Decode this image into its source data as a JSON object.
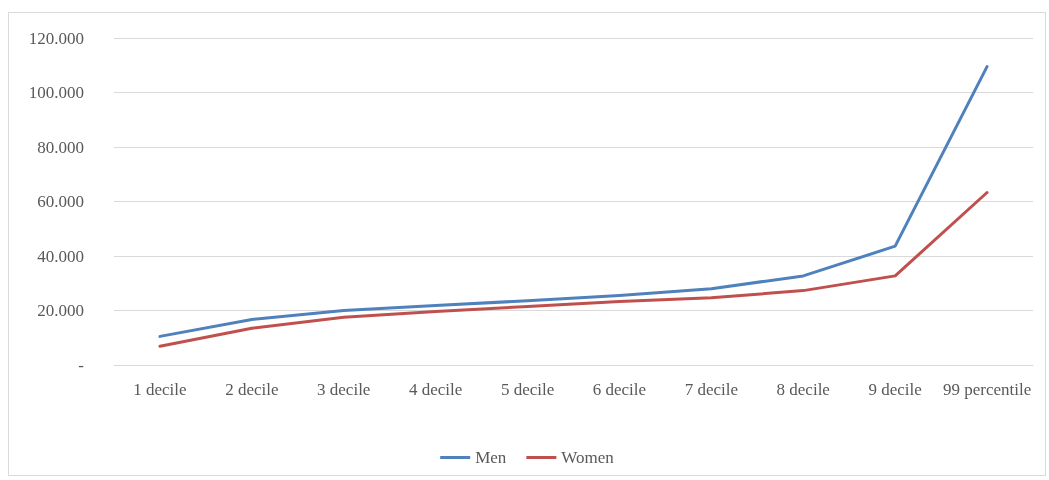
{
  "chart_data": {
    "type": "line",
    "categories": [
      "1 decile",
      "2 decile",
      "3 decile",
      "4 decile",
      "5 decile",
      "6 decile",
      "7 decile",
      "8 decile",
      "9 decile",
      "99 percentile"
    ],
    "series": [
      {
        "name": "Men",
        "color": "#4f81bd",
        "values": [
          10500,
          16700,
          20000,
          21800,
          23600,
          25500,
          28000,
          32700,
          43600,
          109500
        ]
      },
      {
        "name": "Women",
        "color": "#c0504d",
        "values": [
          6900,
          13500,
          17500,
          19600,
          21500,
          23300,
          24700,
          27300,
          32700,
          63300
        ]
      }
    ],
    "ylim": [
      0,
      120000
    ],
    "yticks": [
      {
        "value": 0,
        "label": "-"
      },
      {
        "value": 20000,
        "label": "20.000"
      },
      {
        "value": 40000,
        "label": "40.000"
      },
      {
        "value": 60000,
        "label": "60.000"
      },
      {
        "value": 80000,
        "label": "80.000"
      },
      {
        "value": 100000,
        "label": "100.000"
      },
      {
        "value": 120000,
        "label": "120.000"
      }
    ],
    "grid": "y",
    "legend": "bottom",
    "marker": "none",
    "line_style": "solid"
  }
}
